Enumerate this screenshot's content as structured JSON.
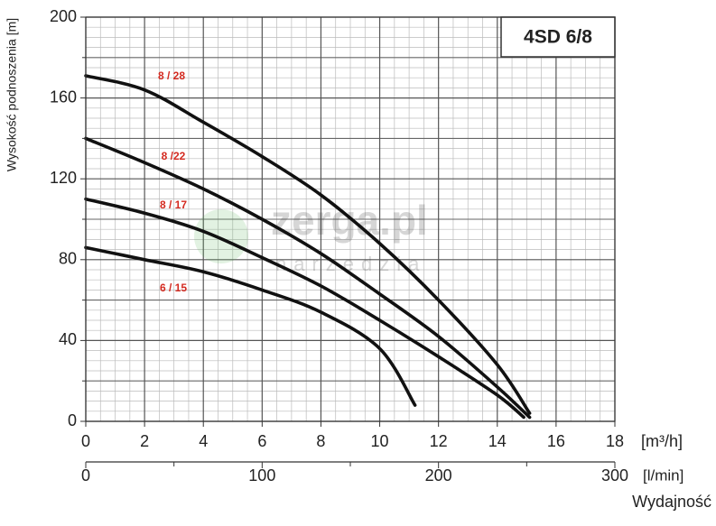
{
  "chart_data": {
    "type": "line",
    "title": "4SD 6/8",
    "ylabel": "Wysokość podnoszenia [m]",
    "xlabel_unit": "[m³/h]",
    "x2label_unit": "[l/min]",
    "xlabel": "Wydajność",
    "watermark": [
      "zerga.pl",
      "narzedzia"
    ],
    "xlim": [
      0,
      18
    ],
    "xticks": [
      0,
      2,
      4,
      6,
      8,
      10,
      12,
      14,
      16,
      18
    ],
    "x2lim": [
      0,
      300
    ],
    "x2ticks": [
      0,
      100,
      200,
      300
    ],
    "ylim": [
      0,
      200
    ],
    "yticks": [
      0,
      40,
      80,
      120,
      160,
      200
    ],
    "grid": true,
    "series": [
      {
        "name": "8 / 28",
        "color": "#111111",
        "x": [
          0,
          2,
          4,
          6,
          8,
          10,
          12,
          14,
          15.1
        ],
        "values": [
          171,
          164,
          148,
          131,
          112,
          88,
          60,
          28,
          4
        ]
      },
      {
        "name": "8 /22",
        "color": "#111111",
        "x": [
          0,
          2,
          4,
          6,
          8,
          10,
          12,
          14,
          15.1
        ],
        "values": [
          140,
          128,
          115,
          100,
          83,
          63,
          42,
          17,
          2
        ]
      },
      {
        "name": "8 / 17",
        "color": "#111111",
        "x": [
          0,
          2,
          4,
          6,
          8,
          10,
          12,
          14,
          14.9
        ],
        "values": [
          110,
          103,
          94,
          81,
          67,
          50,
          32,
          13,
          2
        ]
      },
      {
        "name": "6 / 15",
        "color": "#111111",
        "x": [
          0,
          2,
          4,
          6,
          8,
          10,
          11.2
        ],
        "values": [
          86,
          80,
          74,
          65,
          54,
          36,
          8
        ]
      }
    ],
    "label_color": "#d42a20"
  }
}
